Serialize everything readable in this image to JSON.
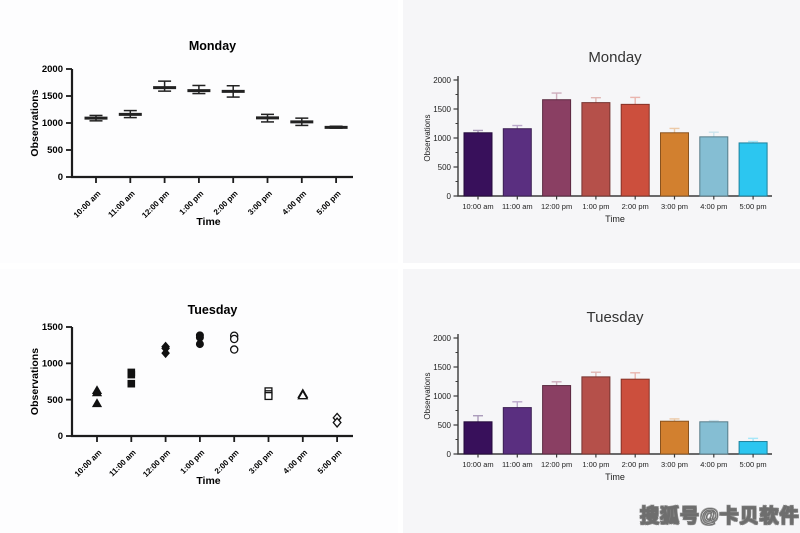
{
  "watermark": {
    "text": "搜狐号@卡贝软件"
  },
  "chart_data": [
    {
      "id": "monday-mean-sd",
      "type": "errorbar",
      "title": "Monday",
      "xlabel": "Time",
      "ylabel": "Observations",
      "categories": [
        "10:00 am",
        "11:00 am",
        "12:00 pm",
        "1:00 pm",
        "2:00 pm",
        "3:00 pm",
        "4:00 pm",
        "5:00 pm"
      ],
      "ylim": [
        0,
        2000
      ],
      "yticks": [
        0,
        500,
        1000,
        1500,
        2000
      ],
      "mean": [
        1090,
        1160,
        1655,
        1600,
        1585,
        1095,
        1020,
        920
      ],
      "low": [
        1040,
        1100,
        1590,
        1545,
        1480,
        1020,
        955,
        905
      ],
      "high": [
        1140,
        1230,
        1775,
        1695,
        1690,
        1160,
        1090,
        940
      ],
      "marker_color": "#222222",
      "legend": "none",
      "grid": false
    },
    {
      "id": "monday-bar",
      "type": "bar",
      "title": "Monday",
      "xlabel": "Time",
      "ylabel": "Observations",
      "categories": [
        "10:00 am",
        "11:00 am",
        "12:00 pm",
        "1:00 pm",
        "2:00 pm",
        "3:00 pm",
        "4:00 pm",
        "5:00 pm"
      ],
      "ylim": [
        0,
        2000
      ],
      "yticks": [
        0,
        500,
        1000,
        1500,
        2000
      ],
      "yticks_minor": [
        250,
        750,
        1250,
        1750
      ],
      "values": [
        1090,
        1160,
        1660,
        1610,
        1580,
        1090,
        1020,
        915
      ],
      "errors_high": [
        1130,
        1215,
        1775,
        1695,
        1700,
        1165,
        1100,
        940
      ],
      "bar_colors": [
        "#38105b",
        "#5a2f80",
        "#8a3f63",
        "#b5504a",
        "#cc4f3d",
        "#d2802f",
        "#85bed3",
        "#2cc6f0"
      ],
      "legend": "none",
      "grid": false
    },
    {
      "id": "tuesday-scatter",
      "type": "scatter",
      "title": "Tuesday",
      "xlabel": "Time",
      "ylabel": "Observations",
      "categories": [
        "10:00 am",
        "11:00 am",
        "12:00 pm",
        "1:00 pm",
        "2:00 pm",
        "3:00 pm",
        "4:00 pm",
        "5:00 pm"
      ],
      "ylim": [
        0,
        1500
      ],
      "yticks": [
        0,
        500,
        1000,
        1500
      ],
      "marker_color": "#111111",
      "groups": [
        {
          "symbol": "triangle",
          "style": "filled",
          "values": [
            630,
            600,
            450
          ]
        },
        {
          "symbol": "square",
          "style": "filled",
          "values": [
            875,
            845,
            720
          ]
        },
        {
          "symbol": "diamond",
          "style": "filled",
          "values": [
            1230,
            1205,
            1140
          ]
        },
        {
          "symbol": "circle",
          "style": "filled",
          "values": [
            1385,
            1355,
            1265
          ]
        },
        {
          "symbol": "circle",
          "style": "open",
          "values": [
            1380,
            1335,
            1190
          ]
        },
        {
          "symbol": "square",
          "style": "open",
          "values": [
            615,
            575,
            550
          ]
        },
        {
          "symbol": "triangle",
          "style": "open",
          "values": [
            580,
            560
          ]
        },
        {
          "symbol": "diamond",
          "style": "open",
          "values": [
            250,
            185
          ]
        }
      ],
      "legend": "none",
      "grid": false
    },
    {
      "id": "tuesday-bar",
      "type": "bar",
      "title": "Tuesday",
      "xlabel": "Time",
      "ylabel": "Observations",
      "categories": [
        "10:00 am",
        "11:00 am",
        "12:00 pm",
        "1:00 pm",
        "2:00 pm",
        "3:00 pm",
        "4:00 pm",
        "5:00 pm"
      ],
      "ylim": [
        0,
        2000
      ],
      "yticks": [
        0,
        500,
        1000,
        1500,
        2000
      ],
      "yticks_minor": [
        250,
        750,
        1250,
        1750
      ],
      "values": [
        555,
        800,
        1180,
        1330,
        1290,
        565,
        555,
        215
      ],
      "errors_high": [
        660,
        900,
        1245,
        1410,
        1400,
        605,
        575,
        270
      ],
      "bar_colors": [
        "#38105b",
        "#5a2f80",
        "#8a3f63",
        "#b5504a",
        "#cc4f3d",
        "#d2802f",
        "#85bed3",
        "#2cc6f0"
      ],
      "legend": "none",
      "grid": false
    }
  ]
}
